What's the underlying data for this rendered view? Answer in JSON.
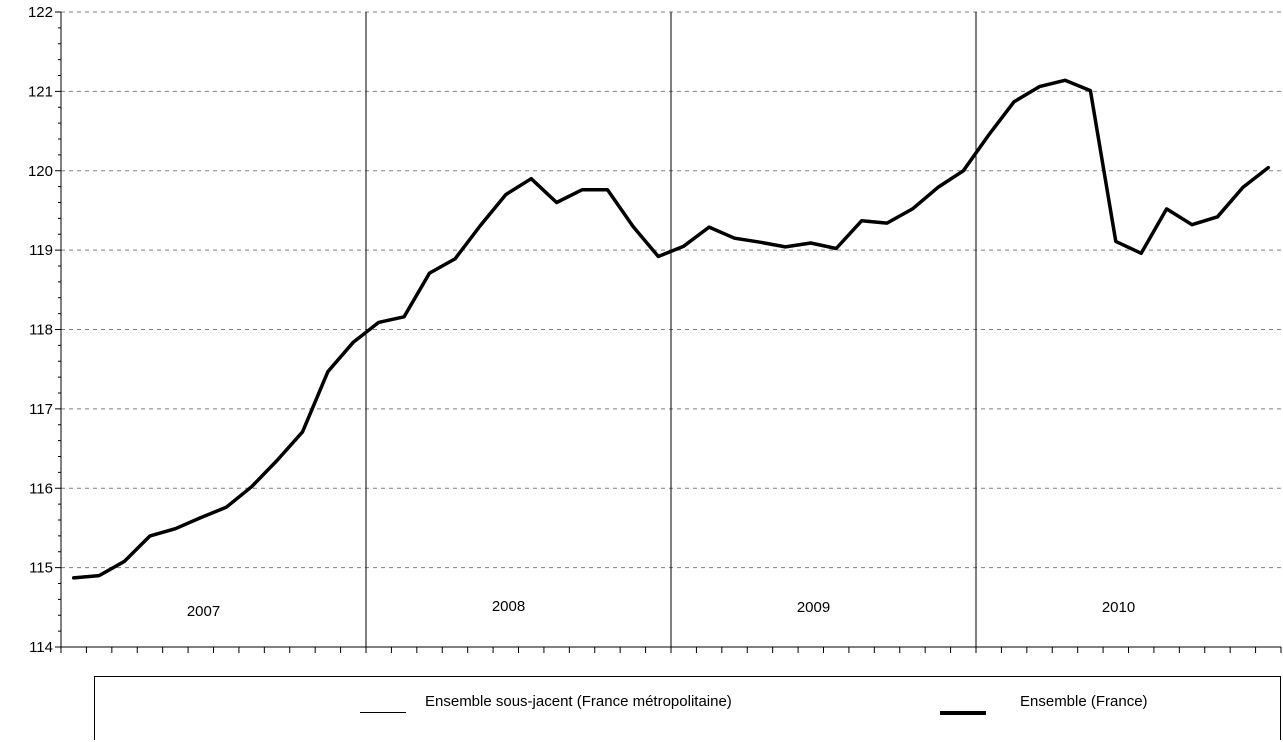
{
  "chart_data": {
    "type": "line",
    "title": "",
    "xlabel": "",
    "ylabel": "",
    "ylim": [
      114,
      122
    ],
    "yticks": [
      114,
      115,
      116,
      117,
      118,
      119,
      120,
      121,
      122
    ],
    "grid": "horizontal dashed",
    "legend_position": "bottom",
    "year_labels": [
      "2007",
      "2008",
      "2009",
      "2010"
    ],
    "months_per_year": 12,
    "x": [
      "2007-01",
      "2007-02",
      "2007-03",
      "2007-04",
      "2007-05",
      "2007-06",
      "2007-07",
      "2007-08",
      "2007-09",
      "2007-10",
      "2007-11",
      "2007-12",
      "2008-01",
      "2008-02",
      "2008-03",
      "2008-04",
      "2008-05",
      "2008-06",
      "2008-07",
      "2008-08",
      "2008-09",
      "2008-10",
      "2008-11",
      "2008-12",
      "2009-01",
      "2009-02",
      "2009-03",
      "2009-04",
      "2009-05",
      "2009-06",
      "2009-07",
      "2009-08",
      "2009-09",
      "2009-10",
      "2009-11",
      "2009-12",
      "2010-01",
      "2010-02",
      "2010-03",
      "2010-04",
      "2010-05",
      "2010-06",
      "2010-07",
      "2010-08",
      "2010-09",
      "2010-10",
      "2010-11",
      "2010-12"
    ],
    "series": [
      {
        "name": "Ensemble (France)",
        "color": "#000000",
        "values": [
          114.87,
          114.9,
          115.08,
          115.4,
          115.49,
          115.63,
          115.76,
          116.02,
          116.35,
          116.71,
          117.47,
          117.84,
          118.09,
          118.16,
          118.71,
          118.89,
          119.31,
          119.7,
          119.9,
          119.6,
          119.76,
          119.76,
          119.3,
          118.92,
          119.05,
          119.29,
          119.15,
          119.1,
          119.04,
          119.09,
          119.02,
          119.37,
          119.34,
          119.52,
          119.79,
          120.0,
          120.45,
          120.87,
          121.06,
          121.14,
          121.01,
          119.11,
          118.96,
          119.52,
          119.32,
          119.42,
          119.79,
          120.04
        ]
      }
    ],
    "legend": [
      {
        "label": "Ensemble sous-jacent (France métropolitaine)",
        "style": "thin",
        "color": "#000000"
      },
      {
        "label": "Ensemble (France)",
        "style": "thick",
        "color": "#000000"
      }
    ]
  }
}
